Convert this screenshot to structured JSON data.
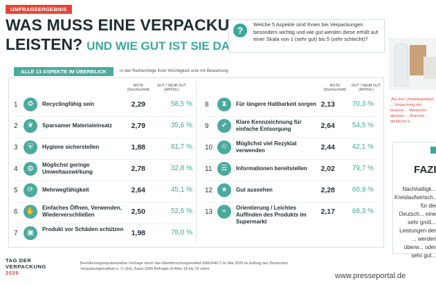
{
  "badge": "UMFRAGEERGEBNIS",
  "title_line1": "WAS MUSS EINE VERPACKUNG",
  "title_line2": "LEISTEN?",
  "title_sub": "UND WIE GUT IST SIE DABEI?",
  "question": "Welche 5 Aspekte sind Ihnen bei Verpackungen besonders wichtig und wie gut werden diese erfüllt auf einer Skala von 1 (sehr gut) bis 5 (sehr schlecht)?",
  "table_title": "ALLE 13 ASPEKTE IM ÜBERBLICK",
  "table_note": "in der Reihenfolge ihrer Wichtigkeit und mit Bewertung",
  "col_grade": "NOTE (Durchschnitt)",
  "col_share": "GUT / SEHR GUT (ANTEIL)",
  "aspects_left": [
    {
      "n": "1",
      "label": "Recyclingfähig sein",
      "grade": "2,29",
      "share": "58,5 %",
      "icon": "recycle-icon",
      "glyph": "♻"
    },
    {
      "n": "2",
      "label": "Sparsamer Materialeinsatz",
      "grade": "2,79",
      "share": "35,6 %",
      "icon": "leaf-icon",
      "glyph": "❦"
    },
    {
      "n": "3",
      "label": "Hygiene sicherstellen",
      "grade": "1,88",
      "share": "81,7 %",
      "icon": "shield-icon",
      "glyph": "⛨"
    },
    {
      "n": "4",
      "label": "Möglichst geringe Umweltauswirkung",
      "grade": "2,78",
      "share": "32,8 %",
      "icon": "globe-icon",
      "glyph": "◍"
    },
    {
      "n": "5",
      "label": "Mehrwegfähigkeit",
      "grade": "2,64",
      "share": "45,1 %",
      "icon": "reuse-icon",
      "glyph": "⟳"
    },
    {
      "n": "6",
      "label": "Einfaches Öffnen, Verwenden, Wiederverschließen",
      "grade": "2,50",
      "share": "52,6 %",
      "icon": "hand-icon",
      "glyph": "✋"
    },
    {
      "n": "7",
      "label": "Produkt vor Schäden schützen",
      "grade": "1,98",
      "share": "78,0 %",
      "icon": "box-icon",
      "glyph": "▣"
    }
  ],
  "aspects_right": [
    {
      "n": "8",
      "label": "Für längere Haltbarkeit sorgen",
      "grade": "2,13",
      "share": "70,3 %",
      "icon": "hourglass-icon",
      "glyph": "⧗"
    },
    {
      "n": "9",
      "label": "Klare Kennzeichnung für einfache Entsorgung",
      "grade": "2,64",
      "share": "54,5 %",
      "icon": "check-icon",
      "glyph": "✔"
    },
    {
      "n": "10",
      "label": "Möglichst viel Rezyklat verwenden",
      "grade": "2,44",
      "share": "42,1 %",
      "icon": "recycled-material-icon",
      "glyph": "♲"
    },
    {
      "n": "11",
      "label": "Informationen bereitstellen",
      "grade": "2,02",
      "share": "79,7 %",
      "icon": "info-icon",
      "glyph": "☰"
    },
    {
      "n": "12",
      "label": "Gut aussehen",
      "grade": "2,28",
      "share": "60,9 %",
      "icon": "star-icon",
      "glyph": "★"
    },
    {
      "n": "13",
      "label": "Orientierung / Leichtes Auffinden des Produkts im Supermarkt",
      "grade": "2,17",
      "share": "68,3 %",
      "icon": "location-icon",
      "glyph": "⌖"
    }
  ],
  "logo_line1": "TAG DER",
  "logo_line2": "VERPACKUNG",
  "logo_year": "2026",
  "footer": "Bevölkerungsrepräsentative Umfrage durch das Marktforschungsinstitut INNOFACT im Mai 2026 im Auftrag des Deutschen Verpackungsinstituts e. V. (dvi). Basis 2006 Befragte im Alter 18 bis 79 Jahre",
  "side_quote": "„Bei den Umweltaspekten ... Verpackung viel bessere ... Menschen glauben. ... Branche deutlicher k...",
  "faz_title": "FAZI",
  "faz_text": "Nachhaltigk... Kreislaufwirtsch... für die Deutsch... eine sehr groß... Leistungen der ... werden überw... oder sehr gut...",
  "watermark": "www.presseportal.de",
  "accent": "#3aa89a",
  "red": "#e3453f"
}
